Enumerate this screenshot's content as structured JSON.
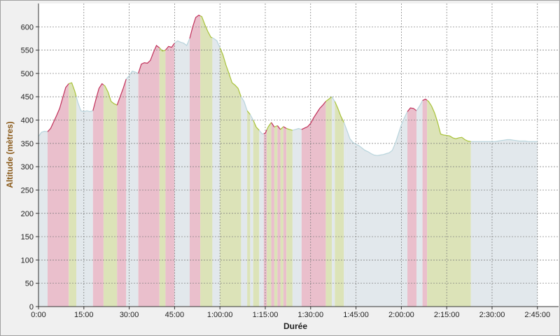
{
  "chart_data": {
    "type": "area",
    "xlabel": "Durée",
    "ylabel": "Altitude (mètres)",
    "xlim": [
      0,
      172
    ],
    "ylim": [
      0,
      650
    ],
    "grid": true,
    "x_ticks": [
      {
        "value": 0,
        "label": "0:00"
      },
      {
        "value": 15,
        "label": "15:00"
      },
      {
        "value": 30,
        "label": "30:00"
      },
      {
        "value": 45,
        "label": "45:00"
      },
      {
        "value": 60,
        "label": "1:00:00"
      },
      {
        "value": 75,
        "label": "1:15:00"
      },
      {
        "value": 90,
        "label": "1:30:00"
      },
      {
        "value": 105,
        "label": "1:45:00"
      },
      {
        "value": 120,
        "label": "2:00:00"
      },
      {
        "value": 135,
        "label": "2:15:00"
      },
      {
        "value": 150,
        "label": "2:30:00"
      },
      {
        "value": 165,
        "label": "2:45:00"
      }
    ],
    "y_ticks": [
      0,
      50,
      100,
      150,
      200,
      250,
      300,
      350,
      400,
      450,
      500,
      550,
      600
    ],
    "colors": {
      "climb_fill": "#eabfcc",
      "climb_line": "#c0305a",
      "descent_fill": "#dce3b8",
      "descent_line": "#a8c23a",
      "flat_fill": "#e2e8ec",
      "flat_line": "#b8d4dc"
    },
    "profile": [
      [
        0,
        365
      ],
      [
        1,
        374
      ],
      [
        2,
        376
      ],
      [
        3,
        375
      ],
      [
        4,
        382
      ],
      [
        5,
        396
      ],
      [
        6,
        410
      ],
      [
        7,
        425
      ],
      [
        8,
        448
      ],
      [
        9,
        470
      ],
      [
        10,
        478
      ],
      [
        11,
        480
      ],
      [
        12,
        462
      ],
      [
        13,
        438
      ],
      [
        14,
        420
      ],
      [
        15,
        418
      ],
      [
        16,
        420
      ],
      [
        17,
        418
      ],
      [
        18,
        420
      ],
      [
        19,
        445
      ],
      [
        20,
        468
      ],
      [
        21,
        478
      ],
      [
        22,
        473
      ],
      [
        23,
        460
      ],
      [
        24,
        440
      ],
      [
        25,
        435
      ],
      [
        26,
        432
      ],
      [
        27,
        450
      ],
      [
        28,
        468
      ],
      [
        29,
        488
      ],
      [
        30,
        495
      ],
      [
        31,
        505
      ],
      [
        32,
        503
      ],
      [
        33,
        500
      ],
      [
        34,
        520
      ],
      [
        35,
        523
      ],
      [
        36,
        522
      ],
      [
        37,
        528
      ],
      [
        38,
        545
      ],
      [
        39,
        560
      ],
      [
        40,
        555
      ],
      [
        41,
        548
      ],
      [
        42,
        550
      ],
      [
        43,
        558
      ],
      [
        44,
        556
      ],
      [
        45,
        565
      ],
      [
        46,
        570
      ],
      [
        47,
        567
      ],
      [
        48,
        565
      ],
      [
        49,
        560
      ],
      [
        50,
        575
      ],
      [
        51,
        600
      ],
      [
        52,
        620
      ],
      [
        53,
        625
      ],
      [
        54,
        622
      ],
      [
        55,
        605
      ],
      [
        56,
        590
      ],
      [
        57,
        578
      ],
      [
        58,
        575
      ],
      [
        59,
        570
      ],
      [
        60,
        555
      ],
      [
        61,
        540
      ],
      [
        62,
        518
      ],
      [
        63,
        500
      ],
      [
        64,
        480
      ],
      [
        65,
        475
      ],
      [
        66,
        468
      ],
      [
        67,
        450
      ],
      [
        68,
        440
      ],
      [
        69,
        420
      ],
      [
        70,
        412
      ],
      [
        71,
        400
      ],
      [
        72,
        385
      ],
      [
        73,
        378
      ],
      [
        74,
        370
      ],
      [
        75,
        372
      ],
      [
        76,
        386
      ],
      [
        77,
        395
      ],
      [
        78,
        385
      ],
      [
        79,
        388
      ],
      [
        80,
        380
      ],
      [
        81,
        386
      ],
      [
        82,
        382
      ],
      [
        83,
        380
      ],
      [
        84,
        378
      ],
      [
        85,
        380
      ],
      [
        86,
        382
      ],
      [
        87,
        380
      ],
      [
        88,
        383
      ],
      [
        89,
        386
      ],
      [
        90,
        393
      ],
      [
        91,
        405
      ],
      [
        92,
        415
      ],
      [
        93,
        425
      ],
      [
        94,
        432
      ],
      [
        95,
        440
      ],
      [
        96,
        445
      ],
      [
        97,
        450
      ],
      [
        98,
        440
      ],
      [
        99,
        425
      ],
      [
        100,
        408
      ],
      [
        101,
        395
      ],
      [
        102,
        378
      ],
      [
        103,
        360
      ],
      [
        104,
        352
      ],
      [
        105,
        348
      ],
      [
        106,
        345
      ],
      [
        107,
        340
      ],
      [
        108,
        335
      ],
      [
        109,
        332
      ],
      [
        110,
        328
      ],
      [
        111,
        325
      ],
      [
        112,
        324
      ],
      [
        113,
        325
      ],
      [
        114,
        326
      ],
      [
        115,
        328
      ],
      [
        116,
        330
      ],
      [
        117,
        335
      ],
      [
        118,
        350
      ],
      [
        119,
        370
      ],
      [
        120,
        390
      ],
      [
        121,
        405
      ],
      [
        122,
        418
      ],
      [
        123,
        426
      ],
      [
        124,
        425
      ],
      [
        125,
        420
      ],
      [
        126,
        430
      ],
      [
        127,
        442
      ],
      [
        128,
        445
      ],
      [
        129,
        440
      ],
      [
        130,
        430
      ],
      [
        131,
        415
      ],
      [
        132,
        395
      ],
      [
        133,
        370
      ],
      [
        134,
        368
      ],
      [
        135,
        367
      ],
      [
        136,
        366
      ],
      [
        137,
        362
      ],
      [
        138,
        360
      ],
      [
        139,
        362
      ],
      [
        140,
        363
      ],
      [
        141,
        358
      ],
      [
        142,
        355
      ],
      [
        143,
        354
      ],
      [
        144,
        354
      ],
      [
        145,
        354
      ],
      [
        146,
        354
      ],
      [
        147,
        354
      ],
      [
        148,
        354
      ],
      [
        149,
        354
      ],
      [
        150,
        354
      ],
      [
        151,
        354
      ],
      [
        152,
        355
      ],
      [
        153,
        356
      ],
      [
        154,
        357
      ],
      [
        155,
        358
      ],
      [
        156,
        358
      ],
      [
        157,
        357
      ],
      [
        158,
        356
      ],
      [
        159,
        355
      ],
      [
        160,
        355
      ],
      [
        161,
        355
      ],
      [
        162,
        354
      ],
      [
        163,
        354
      ],
      [
        164,
        354
      ],
      [
        165,
        354
      ]
    ],
    "segments": [
      [
        0,
        3,
        "flat"
      ],
      [
        3,
        10,
        "climb"
      ],
      [
        10,
        12.5,
        "descent"
      ],
      [
        12.5,
        15,
        "flat"
      ],
      [
        15,
        18,
        "flat"
      ],
      [
        18,
        21.5,
        "climb"
      ],
      [
        21.5,
        26,
        "descent"
      ],
      [
        26,
        29,
        "climb"
      ],
      [
        29,
        33,
        "flat"
      ],
      [
        33,
        40,
        "climb"
      ],
      [
        40,
        42,
        "descent"
      ],
      [
        42,
        45,
        "climb"
      ],
      [
        45,
        50,
        "flat"
      ],
      [
        50,
        53.5,
        "climb"
      ],
      [
        53.5,
        57.5,
        "descent"
      ],
      [
        57.5,
        60,
        "flat"
      ],
      [
        60,
        67,
        "descent"
      ],
      [
        67,
        69,
        "flat"
      ],
      [
        69,
        70,
        "descent"
      ],
      [
        70,
        71,
        "flat"
      ],
      [
        71,
        73,
        "descent"
      ],
      [
        73,
        74.5,
        "flat"
      ],
      [
        74.5,
        75.5,
        "climb"
      ],
      [
        75.5,
        77,
        "descent"
      ],
      [
        77,
        78,
        "climb"
      ],
      [
        78,
        79,
        "descent"
      ],
      [
        79,
        80,
        "climb"
      ],
      [
        80,
        81,
        "descent"
      ],
      [
        81,
        82,
        "climb"
      ],
      [
        82,
        84,
        "descent"
      ],
      [
        84,
        87,
        "flat"
      ],
      [
        87,
        95,
        "climb"
      ],
      [
        95,
        97,
        "descent"
      ],
      [
        97,
        98,
        "flat"
      ],
      [
        98,
        101,
        "descent"
      ],
      [
        101,
        102,
        "flat"
      ],
      [
        102,
        122,
        "flat"
      ],
      [
        122,
        125,
        "climb"
      ],
      [
        125,
        127,
        "flat"
      ],
      [
        127,
        128.5,
        "climb"
      ],
      [
        128.5,
        143,
        "descent"
      ],
      [
        143,
        165,
        "flat"
      ]
    ]
  }
}
